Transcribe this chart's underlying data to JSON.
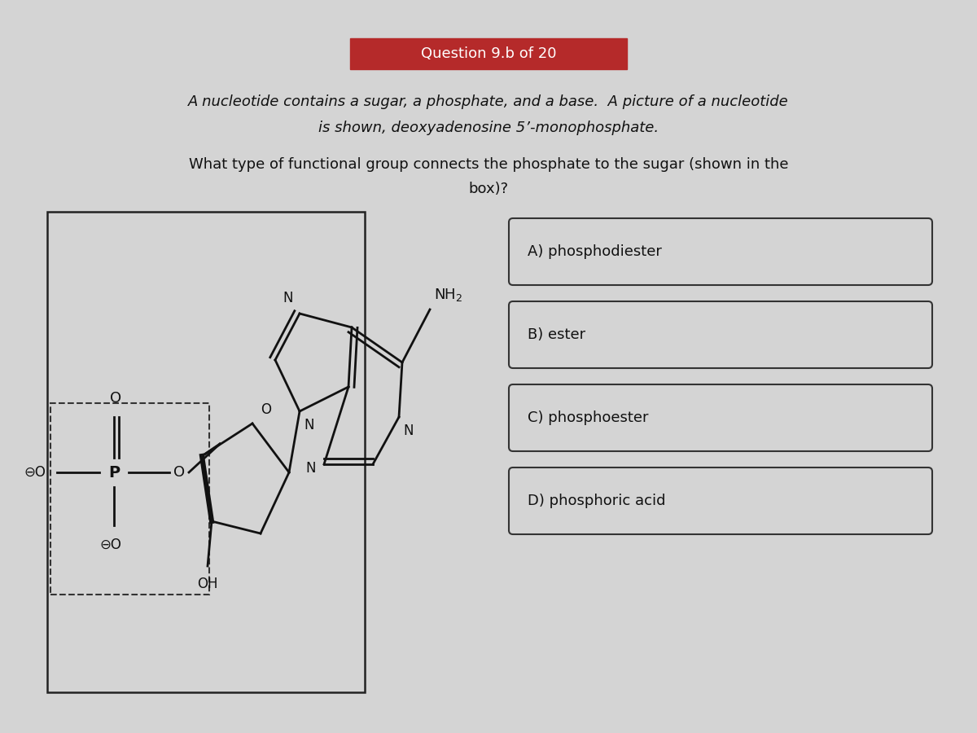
{
  "bg_color": "#d4d4d4",
  "header_bar_color": "#b52a2a",
  "header_text": "Question 9.b of 20",
  "q_line1": "A nucleotide contains a sugar, a phosphate, and a base.  A picture of a nucleotide",
  "q_line2": "is shown, deoxyadenosine 5’-monophosphate.",
  "q_line3": "What type of functional group connects the phosphate to the sugar (shown in the",
  "q_line4": "box)?",
  "choices": [
    "A) phosphodiester",
    "B) ester",
    "C) phosphoester",
    "D) phosphoric acid"
  ],
  "text_color": "#111111",
  "line_color": "#111111"
}
